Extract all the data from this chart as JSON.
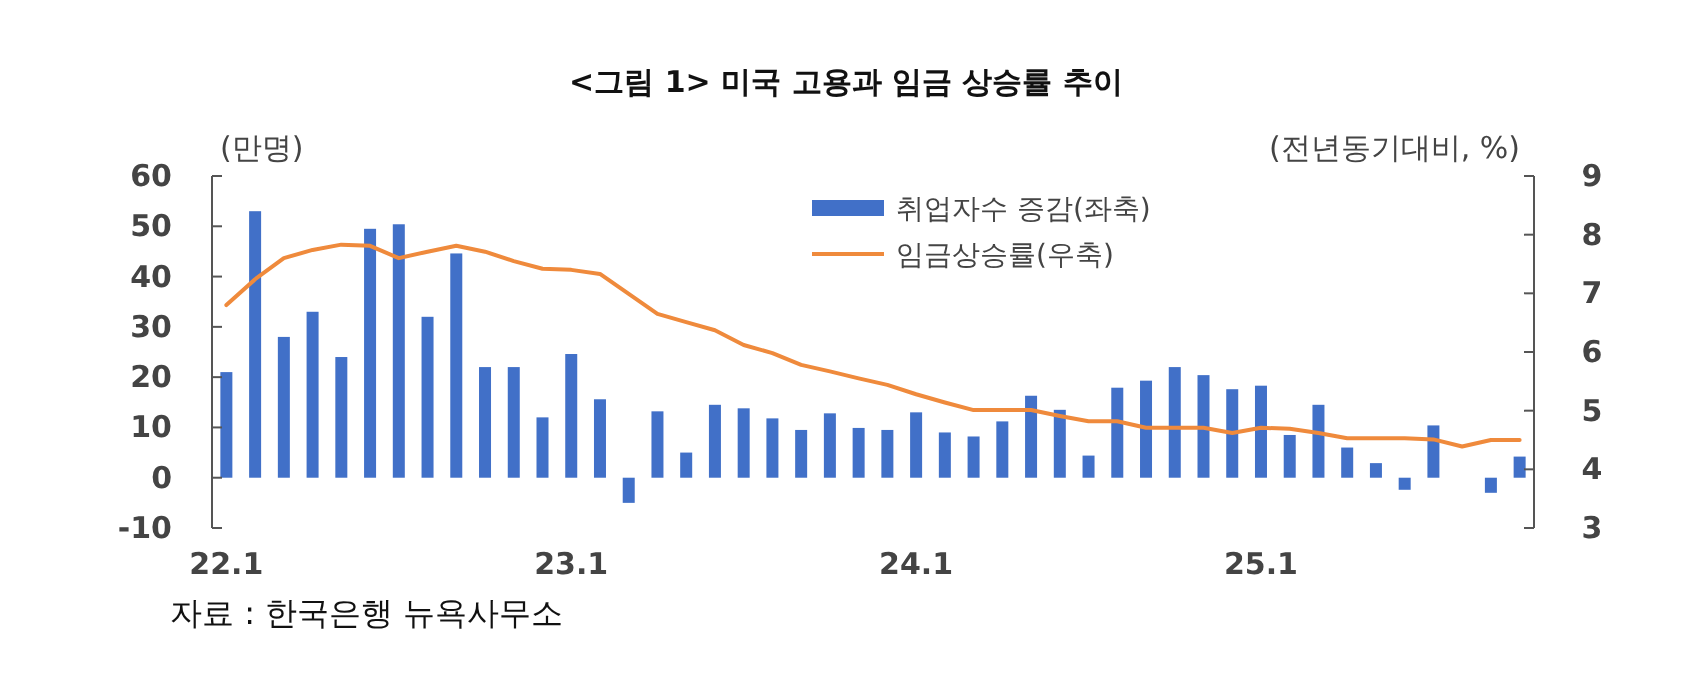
{
  "chart_data": {
    "type": "bar",
    "title": "<그림 1> 미국 고용과 임금 상승률 추이",
    "ylabel": "(만명)",
    "y2label": "(전년동기대비, %)",
    "annotations": [
      "자료 : 한국은행 뉴욕사무소"
    ],
    "categories": [
      "22.1",
      null,
      null,
      null,
      null,
      null,
      null,
      null,
      null,
      null,
      null,
      null,
      "23.1",
      null,
      null,
      null,
      null,
      null,
      null,
      null,
      null,
      null,
      null,
      null,
      "24.1",
      null,
      null,
      null,
      null,
      null,
      null,
      null,
      null,
      null,
      null,
      null,
      "25.1",
      null,
      null,
      null,
      null,
      null,
      null,
      null,
      null,
      null
    ],
    "series": [
      {
        "name": "취업자수 증감(좌축)",
        "color": "#4170c8",
        "values": [
          21,
          53,
          28,
          33,
          24,
          49.5,
          50.4,
          32,
          44.6,
          22,
          22,
          12,
          24.6,
          15.6,
          -5,
          13.2,
          5,
          14.5,
          13.8,
          11.8,
          9.5,
          12.8,
          9.9,
          9.5,
          13,
          9,
          8.2,
          11.2,
          16.3,
          13.5,
          4.4,
          17.9,
          19.3,
          22,
          20.4,
          17.6,
          18.3,
          8.5,
          14.5,
          6,
          2.9,
          -2.4,
          10.4,
          null,
          -3,
          4.2
        ]
      },
      {
        "name": "임금상승률(우축)",
        "type": "line",
        "axis": "y2",
        "color": "#ef8a3c",
        "values": [
          6.8,
          7.24,
          7.6,
          7.74,
          7.83,
          7.81,
          7.6,
          7.71,
          7.81,
          7.71,
          7.55,
          7.42,
          7.4,
          7.33,
          6.99,
          6.65,
          6.51,
          6.37,
          6.12,
          5.98,
          5.78,
          5.67,
          5.55,
          5.44,
          5.28,
          5.14,
          5.01,
          5.01,
          5.01,
          4.91,
          4.82,
          4.82,
          4.71,
          4.71,
          4.71,
          4.62,
          4.71,
          4.69,
          4.62,
          4.53,
          4.53,
          4.53,
          4.51,
          4.39,
          4.5,
          4.5
        ]
      }
    ],
    "ylim": [
      -10,
      60
    ],
    "yticks": [
      -10,
      0,
      10,
      20,
      30,
      40,
      50,
      60
    ],
    "y2lim": [
      3,
      9
    ],
    "y2ticks": [
      3,
      4,
      5,
      6,
      7,
      8,
      9
    ],
    "legend": "top right",
    "grid": false
  }
}
